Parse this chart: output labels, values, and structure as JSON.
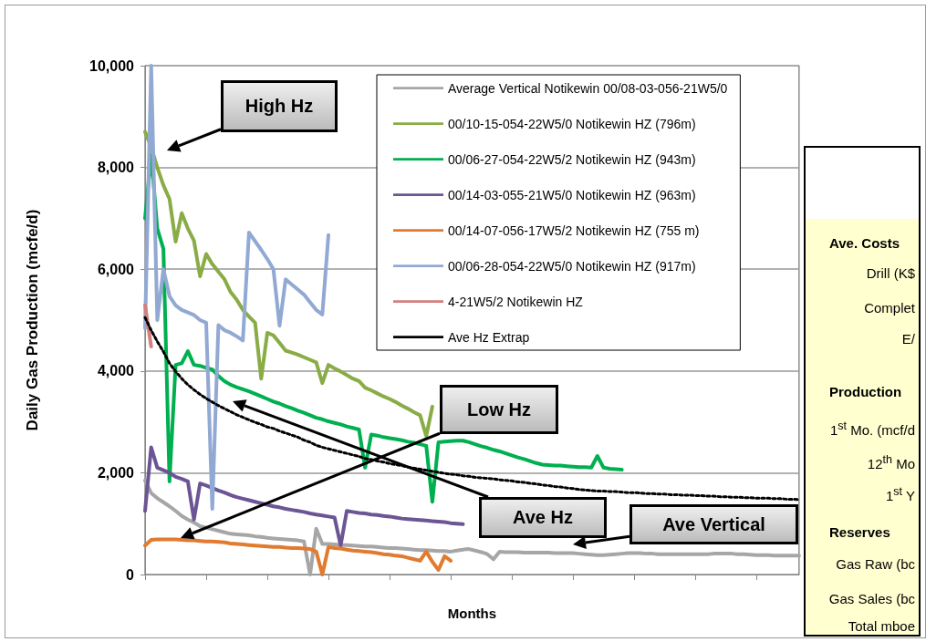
{
  "chart_data": [
    {
      "type": "line",
      "xlabel": "Months",
      "ylabel": "Daily Gas Production (mcfe/d)",
      "categories": [
        null,
        null,
        null,
        null,
        null,
        null,
        null,
        null,
        null,
        null,
        null,
        null,
        null,
        null,
        null,
        null,
        null,
        null,
        null,
        null,
        null,
        null,
        null,
        null,
        null,
        null,
        null,
        null,
        null,
        null,
        null,
        null,
        null,
        null,
        null,
        null,
        null,
        null,
        null,
        null,
        null,
        null,
        null,
        null,
        null,
        null,
        null,
        null,
        null,
        null,
        null,
        null,
        null,
        null,
        null,
        null,
        null,
        null,
        null,
        null,
        null,
        null,
        null,
        null,
        null,
        null,
        null,
        null,
        null,
        null,
        null,
        null,
        null,
        null,
        null,
        null,
        null,
        null,
        null,
        null,
        null,
        null,
        null,
        null,
        null,
        null,
        null,
        null,
        null,
        null,
        null,
        null,
        null,
        null,
        null,
        null,
        null,
        null,
        null,
        null,
        null,
        null,
        null,
        null,
        null,
        null,
        null,
        null
      ],
      "ylim": [
        0,
        10000
      ],
      "yticks": [
        {
          "value": 0,
          "label": "0"
        },
        {
          "value": 2000,
          "label": "2,000"
        },
        {
          "value": 4000,
          "label": "4,000"
        },
        {
          "value": 6000,
          "label": "6,000"
        },
        {
          "value": 8000,
          "label": "8,000"
        },
        {
          "value": 10000,
          "label": "10,000"
        }
      ],
      "tick_labels": "y",
      "grid": "y",
      "legend": "top right",
      "marker": "none",
      "line_style": "solid",
      "series": [
        {
          "name": "Average Vertical Notikewin 00/08-03-056-21W5/0",
          "color": "#a6a6a6",
          "values": [
            1850,
            1600,
            1500,
            1420,
            1340,
            1250,
            1150,
            1080,
            1020,
            950,
            920,
            890,
            860,
            830,
            800,
            790,
            780,
            770,
            750,
            740,
            720,
            710,
            700,
            690,
            680,
            670,
            650,
            0,
            900,
            600,
            600,
            590,
            580,
            580,
            570,
            560,
            550,
            550,
            540,
            530,
            520,
            520,
            510,
            500,
            490,
            480,
            480,
            470,
            460,
            460,
            450,
            470,
            490,
            500,
            470,
            440,
            400,
            300,
            450,
            440,
            440,
            440,
            430,
            430,
            430,
            430,
            430,
            420,
            420,
            420,
            420,
            410,
            400,
            390,
            380,
            380,
            390,
            400,
            410,
            420,
            420,
            420,
            410,
            410,
            400,
            400,
            400,
            400,
            400,
            400,
            400,
            400,
            400,
            410,
            410,
            410,
            410,
            400,
            400,
            390,
            380,
            380,
            380,
            370,
            370,
            370,
            370,
            370
          ]
        },
        {
          "name": "00/10-15-054-22W5/0 Notikewin HZ (796m)",
          "color": "#8aac46",
          "values": [
            8700,
            8400,
            8000,
            7650,
            7380,
            6540,
            7100,
            6800,
            6560,
            5860,
            6300,
            6100,
            5950,
            5800,
            5550,
            5400,
            5200,
            5070,
            4950,
            3850,
            4750,
            4700,
            4550,
            4400,
            4360,
            4320,
            4270,
            4220,
            4170,
            3760,
            4120,
            4050,
            3990,
            3920,
            3850,
            3800,
            3670,
            3620,
            3560,
            3500,
            3450,
            3390,
            3320,
            3260,
            3190,
            3130,
            2720,
            3300,
            null,
            null,
            null,
            null,
            null,
            null,
            null,
            null,
            null,
            null,
            null,
            null,
            null,
            null,
            null,
            null,
            null,
            null,
            null,
            null,
            null,
            null,
            null,
            null,
            null,
            null,
            null,
            null,
            null,
            null,
            null,
            null,
            null,
            null,
            null,
            null,
            null,
            null,
            null,
            null,
            null,
            null,
            null,
            null,
            null,
            null,
            null,
            null,
            null,
            null,
            null,
            null,
            null,
            null,
            null,
            null,
            null,
            null,
            null,
            null
          ]
        },
        {
          "name": "00/06-27-054-22W5/2 Notikewin HZ (943m)",
          "color": "#00b050",
          "values": [
            7000,
            8250,
            6800,
            6400,
            1830,
            4120,
            4150,
            4390,
            4120,
            4100,
            4060,
            4030,
            3900,
            3800,
            3730,
            3680,
            3640,
            3600,
            3550,
            3500,
            3450,
            3400,
            3360,
            3310,
            3270,
            3220,
            3180,
            3130,
            3080,
            3050,
            3010,
            2980,
            2950,
            2910,
            2880,
            2850,
            2100,
            2750,
            2730,
            2700,
            2680,
            2660,
            2640,
            2610,
            2590,
            2560,
            2530,
            1430,
            2600,
            2610,
            2620,
            2630,
            2630,
            2600,
            2560,
            2520,
            2490,
            2450,
            2420,
            2380,
            2340,
            2300,
            2270,
            2230,
            2190,
            2160,
            2150,
            2140,
            2140,
            2130,
            2120,
            2110,
            2110,
            2100,
            2330,
            2100,
            2080,
            2070,
            2060,
            null,
            null,
            null,
            null,
            null,
            null,
            null,
            null,
            null,
            null,
            null,
            null,
            null,
            null,
            null,
            null,
            null,
            null,
            null,
            null,
            null,
            null,
            null,
            null,
            null,
            null,
            null,
            null,
            null
          ]
        },
        {
          "name": "00/14-03-055-21W5/0 Notikewin HZ (963m)",
          "color": "#6b5594",
          "values": [
            1250,
            2500,
            2100,
            2050,
            2000,
            1920,
            1880,
            1830,
            1080,
            1790,
            1750,
            1700,
            1650,
            1610,
            1560,
            1520,
            1490,
            1460,
            1430,
            1400,
            1370,
            1340,
            1320,
            1290,
            1270,
            1250,
            1230,
            1200,
            1180,
            1160,
            1140,
            1120,
            570,
            1250,
            1230,
            1210,
            1200,
            1180,
            1170,
            1150,
            1140,
            1120,
            1100,
            1090,
            1080,
            1070,
            1060,
            1050,
            1040,
            1030,
            1010,
            1000,
            990,
            null,
            null,
            null,
            null,
            null,
            null,
            null,
            null,
            null,
            null,
            null,
            null,
            null,
            null,
            null,
            null,
            null,
            null,
            null,
            null,
            null,
            null,
            null,
            null,
            null,
            null,
            null,
            null,
            null,
            null,
            null,
            null,
            null,
            null,
            null,
            null,
            null,
            null,
            null,
            null,
            null,
            null,
            null,
            null,
            null,
            null,
            null,
            null,
            null,
            null,
            null,
            null,
            null,
            null,
            null
          ]
        },
        {
          "name": "00/14-07-056-17W5/2 Notikewin HZ (755 m)",
          "color": "#e07b30",
          "values": [
            570,
            680,
            690,
            690,
            690,
            690,
            680,
            670,
            670,
            660,
            650,
            650,
            640,
            630,
            610,
            600,
            590,
            580,
            570,
            560,
            550,
            540,
            540,
            530,
            520,
            520,
            510,
            500,
            450,
            0,
            540,
            520,
            510,
            490,
            470,
            460,
            450,
            440,
            420,
            400,
            390,
            370,
            360,
            330,
            300,
            270,
            450,
            250,
            90,
            360,
            270,
            null,
            null,
            null,
            null,
            null,
            null,
            null,
            null,
            null,
            null,
            null,
            null,
            null,
            null,
            null,
            null,
            null,
            null,
            null,
            null,
            null,
            null,
            null,
            null,
            null,
            null,
            null,
            null,
            null,
            null,
            null,
            null,
            null,
            null,
            null,
            null,
            null,
            null,
            null,
            null,
            null,
            null,
            null,
            null,
            null,
            null,
            null,
            null,
            null,
            null,
            null,
            null,
            null,
            null,
            null,
            null,
            null
          ]
        },
        {
          "name": "00/06-28-054-22W5/0 Notikewin HZ (917m)",
          "color": "#91a9d3",
          "values": [
            4840,
            10000,
            5000,
            6000,
            5470,
            5290,
            5200,
            5150,
            5100,
            5000,
            4950,
            1290,
            4900,
            4800,
            4750,
            4680,
            4600,
            6720,
            6550,
            6380,
            6200,
            6000,
            4890,
            5800,
            5700,
            5600,
            5500,
            5350,
            5200,
            5110,
            6670,
            null,
            null,
            null,
            null,
            null,
            null,
            null,
            null,
            null,
            null,
            null,
            null,
            null,
            null,
            null,
            null,
            null,
            null,
            null,
            null,
            null,
            null,
            null,
            null,
            null,
            null,
            null,
            null,
            null,
            null,
            null,
            null,
            null,
            null,
            null,
            null,
            null,
            null,
            null,
            null,
            null,
            null,
            null,
            null,
            null,
            null,
            null,
            null,
            null,
            null,
            null,
            null,
            null,
            null,
            null,
            null,
            null,
            null,
            null,
            null,
            null,
            null,
            null,
            null,
            null,
            null,
            null,
            null,
            null,
            null,
            null,
            null,
            null,
            null,
            null,
            null,
            null
          ]
        },
        {
          "name": "4-21W5/2 Notikewin HZ",
          "color": "#d47f7f",
          "values": [
            5290,
            4480,
            null,
            null,
            null,
            null,
            null,
            null,
            null,
            null,
            null,
            null,
            null,
            null,
            null,
            null,
            null,
            null,
            null,
            null,
            null,
            null,
            null,
            null,
            null,
            null,
            null,
            null,
            null,
            null,
            null,
            null,
            null,
            null,
            null,
            null,
            null,
            null,
            null,
            null,
            null,
            null,
            null,
            null,
            null,
            null,
            null,
            null,
            null,
            null,
            null,
            null,
            null,
            null,
            null,
            null,
            null,
            null,
            null,
            null,
            null,
            null,
            null,
            null,
            null,
            null,
            null,
            null,
            null,
            null,
            null,
            null,
            null,
            null,
            null,
            null,
            null,
            null,
            null,
            null,
            null,
            null,
            null,
            null,
            null,
            null,
            null,
            null,
            null,
            null,
            null,
            null,
            null,
            null,
            null,
            null,
            null,
            null,
            null,
            null,
            null,
            null,
            null,
            null,
            null,
            null,
            null,
            null
          ]
        },
        {
          "name": "Ave Hz Extrap",
          "color": "#000000",
          "line_style": "dotted",
          "values": [
            5050,
            4800,
            4580,
            4380,
            4150,
            3990,
            3850,
            3730,
            3630,
            3540,
            3460,
            3390,
            3320,
            3260,
            3200,
            3140,
            3090,
            3040,
            2990,
            2950,
            2900,
            2870,
            2820,
            2780,
            2740,
            2700,
            2640,
            2600,
            2540,
            2500,
            2470,
            2440,
            2410,
            2380,
            2350,
            2320,
            2280,
            2260,
            2230,
            2210,
            2180,
            2160,
            2140,
            2110,
            2090,
            2070,
            2050,
            2030,
            2010,
            1990,
            1970,
            1960,
            1940,
            1930,
            1910,
            1900,
            1890,
            1880,
            1860,
            1850,
            1840,
            1820,
            1810,
            1790,
            1780,
            1760,
            1750,
            1730,
            1720,
            1700,
            1690,
            1670,
            1660,
            1650,
            1640,
            1640,
            1630,
            1630,
            1620,
            1610,
            1610,
            1600,
            1590,
            1590,
            1580,
            1580,
            1570,
            1570,
            1560,
            1560,
            1550,
            1550,
            1540,
            1540,
            1530,
            1530,
            1520,
            1520,
            1510,
            1510,
            1500,
            1500,
            1500,
            1490,
            1490,
            1480,
            1480,
            1470
          ]
        }
      ],
      "annotations": [
        "High Hz",
        "Ave Hz",
        "Low Hz",
        "Ave Vertical"
      ]
    },
    {
      "type": "other",
      "annotations": [
        "Ave. Costs",
        "Drill (K$",
        "Complet",
        "E/",
        "Production",
        "1$^{st}$ Mo. (mcf/d",
        "12$^{th}$ Mo",
        "1$^{st}$ Y",
        "Reserves",
        "Gas Raw (bc",
        "Gas Sales (bc",
        "Total mboe"
      ]
    }
  ]
}
